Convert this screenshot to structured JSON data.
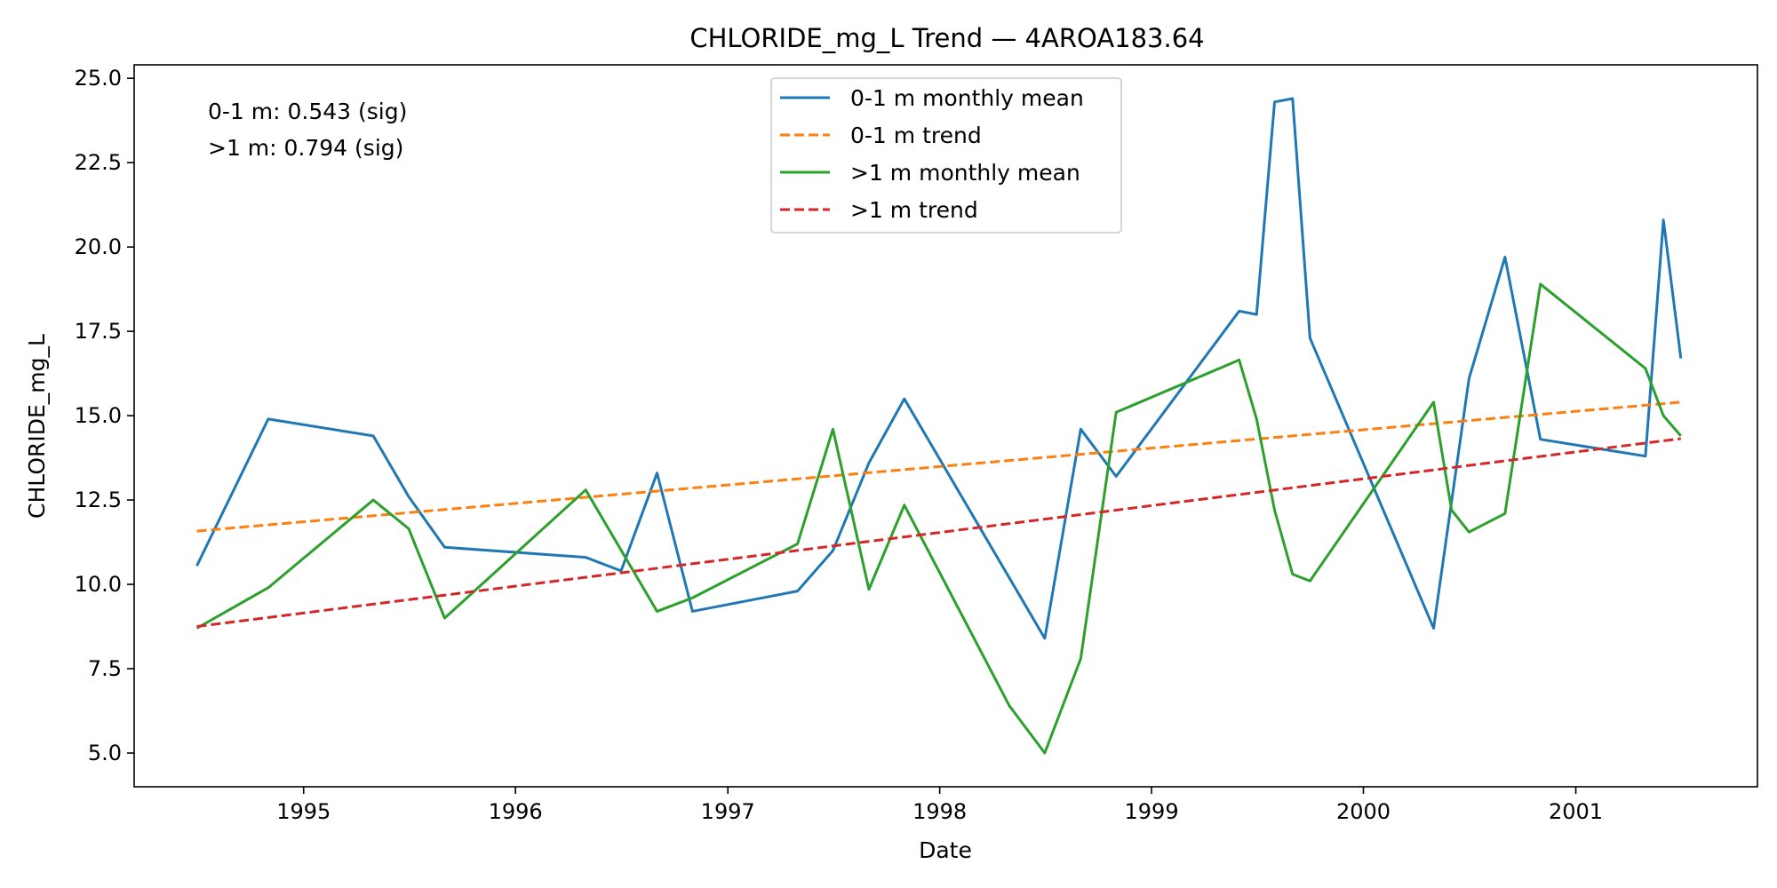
{
  "chart_data": {
    "type": "line",
    "title": "CHLORIDE_mg_L Trend — 4AROA183.64",
    "xlabel": "Date",
    "ylabel": "CHLORIDE_mg_L",
    "x_axis_type": "date",
    "xlim": [
      "1994-03-15",
      "2001-11-10"
    ],
    "ylim": [
      4.0,
      25.4
    ],
    "x_ticks": [
      "1995",
      "1996",
      "1997",
      "1998",
      "1999",
      "2000",
      "2001"
    ],
    "x_tick_dates": [
      "1995-01-01",
      "1996-01-01",
      "1997-01-01",
      "1998-01-01",
      "1999-01-01",
      "2000-01-01",
      "2001-01-01"
    ],
    "y_ticks": [
      "5.0",
      "7.5",
      "10.0",
      "12.5",
      "15.0",
      "17.5",
      "20.0",
      "22.5",
      "25.0"
    ],
    "y_tick_values": [
      5.0,
      7.5,
      10.0,
      12.5,
      15.0,
      17.5,
      20.0,
      22.5,
      25.0
    ],
    "grid": false,
    "legend_position": "upper-center",
    "annotations": [
      "0-1 m: 0.543 (sig)",
      ">1 m: 0.794 (sig)"
    ],
    "series": [
      {
        "name": "0-1 m monthly mean",
        "style": "solid",
        "color": "#1f77b4",
        "x": [
          "1994-07-01",
          "1994-11-01",
          "1995-05-01",
          "1995-07-01",
          "1995-09-01",
          "1996-05-01",
          "1996-07-01",
          "1996-09-01",
          "1996-11-01",
          "1997-05-01",
          "1997-07-01",
          "1997-09-01",
          "1997-11-01",
          "1998-07-01",
          "1998-09-01",
          "1998-11-01",
          "1999-06-01",
          "1999-07-01",
          "1999-08-01",
          "1999-09-01",
          "1999-10-01",
          "2000-05-01",
          "2000-07-01",
          "2000-09-01",
          "2000-11-01",
          "2001-05-01",
          "2001-06-01",
          "2001-07-01"
        ],
        "y": [
          10.55,
          14.9,
          14.4,
          12.6,
          11.1,
          10.8,
          10.4,
          13.3,
          9.2,
          9.8,
          11.0,
          13.6,
          15.5,
          8.4,
          14.6,
          13.2,
          18.1,
          18.0,
          24.3,
          24.4,
          17.3,
          8.7,
          16.1,
          19.7,
          14.3,
          13.8,
          20.8,
          16.7
        ]
      },
      {
        "name": "0-1 m trend",
        "style": "dashed",
        "color": "#ff7f0e",
        "x": [
          "1994-07-01",
          "2001-07-01"
        ],
        "y": [
          11.58,
          15.4
        ]
      },
      {
        "name": ">1 m monthly mean",
        "style": "solid",
        "color": "#2ca02c",
        "x": [
          "1994-07-01",
          "1994-11-01",
          "1995-05-01",
          "1995-07-01",
          "1995-09-01",
          "1996-05-01",
          "1996-09-01",
          "1996-11-01",
          "1997-05-01",
          "1997-07-01",
          "1997-09-01",
          "1997-11-01",
          "1998-05-01",
          "1998-07-01",
          "1998-09-01",
          "1998-11-01",
          "1999-06-01",
          "1999-07-01",
          "1999-08-01",
          "1999-09-01",
          "1999-10-01",
          "2000-05-01",
          "2000-06-01",
          "2000-07-01",
          "2000-09-01",
          "2000-11-01",
          "2001-05-01",
          "2001-06-01",
          "2001-07-01"
        ],
        "y": [
          8.7,
          9.9,
          12.5,
          11.65,
          9.0,
          12.8,
          9.2,
          9.6,
          11.2,
          14.6,
          9.85,
          12.35,
          6.4,
          5.0,
          7.8,
          15.1,
          16.65,
          14.9,
          12.2,
          10.3,
          10.1,
          15.4,
          12.2,
          11.55,
          12.1,
          18.9,
          16.4,
          15.0,
          14.4
        ]
      },
      {
        "name": ">1 m trend",
        "style": "dashed",
        "color": "#d62728",
        "x": [
          "1994-07-01",
          "2001-07-01"
        ],
        "y": [
          8.75,
          14.32
        ]
      }
    ]
  }
}
